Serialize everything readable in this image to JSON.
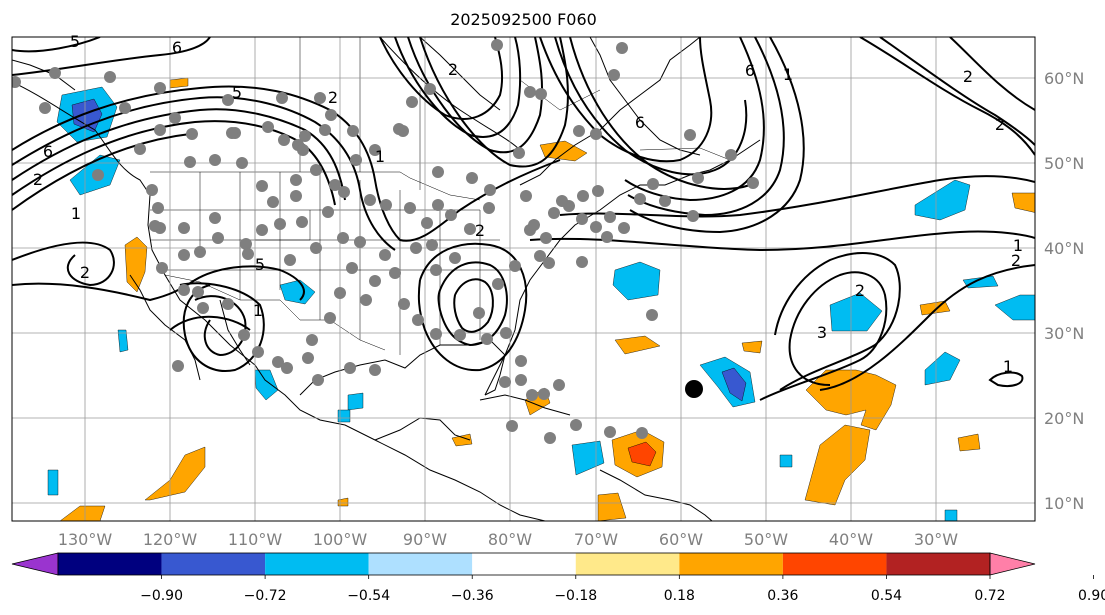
{
  "title": "2025092500 F060",
  "map": {
    "lon_range": [
      -139,
      -19
    ],
    "lat_range": [
      8,
      65
    ],
    "lon_labels": [
      "130°W",
      "120°W",
      "110°W",
      "100°W",
      "90°W",
      "80°W",
      "70°W",
      "60°W",
      "50°W",
      "40°W",
      "30°W"
    ],
    "lat_labels": [
      "60°N",
      "50°N",
      "40°N",
      "30°N",
      "20°N",
      "10°N"
    ],
    "grid": true,
    "contour_labels": [
      "5",
      "6",
      "5",
      "6",
      "2",
      "1",
      "2",
      "5",
      "1",
      "1",
      "2",
      "2",
      "2",
      "6",
      "6",
      "1",
      "2",
      "3",
      "2",
      "2",
      "1",
      "2",
      "1"
    ],
    "colors": {
      "positive": [
        "#ffe98a",
        "#ffa500",
        "#ff4500",
        "#b22222",
        "#ff7fa8"
      ],
      "negative": [
        "#9a34cf",
        "#00007f",
        "#3858d0",
        "#00bcf2",
        "#aee0ff"
      ],
      "neutral": "#ffffff"
    }
  },
  "colorbar": {
    "ticks": [
      "−0.90",
      "−0.72",
      "−0.54",
      "−0.36",
      "−0.18",
      "0.18",
      "0.36",
      "0.54",
      "0.72",
      "0.90"
    ],
    "bins": [
      {
        "color": "#9a34cf"
      },
      {
        "color": "#00007f"
      },
      {
        "color": "#3858d0"
      },
      {
        "color": "#00bcf2"
      },
      {
        "color": "#aee0ff"
      },
      {
        "color": "#ffffff"
      },
      {
        "color": "#ffe98a"
      },
      {
        "color": "#ffa500"
      },
      {
        "color": "#ff4500"
      },
      {
        "color": "#b22222"
      },
      {
        "color": "#ff7fa8"
      }
    ]
  }
}
